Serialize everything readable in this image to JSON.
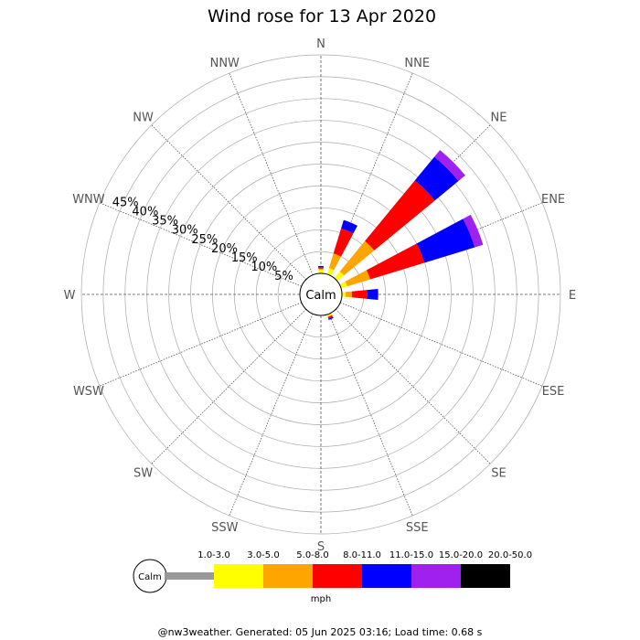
{
  "chart_data": {
    "type": "wind-rose",
    "title": "Wind rose for 13 Apr 2020",
    "directions": [
      "N",
      "NNE",
      "NE",
      "ENE",
      "E",
      "ESE",
      "SE",
      "SSE",
      "S",
      "SSW",
      "SW",
      "WSW",
      "W",
      "WNW",
      "NW",
      "NNW"
    ],
    "radial_ticks": [
      "5%",
      "10%",
      "15%",
      "20%",
      "25%",
      "30%",
      "35%",
      "40%",
      "45%"
    ],
    "radial_max": 50,
    "calm_label": "Calm",
    "speed_unit": "mph",
    "speed_bins": [
      {
        "label": "1.0-3.0",
        "color": "#999999"
      },
      {
        "label": "3.0-5.0",
        "color": "#ffff00"
      },
      {
        "label": "5.0-8.0",
        "color": "#ffa500"
      },
      {
        "label": "8.0-11.0",
        "color": "#ff0000"
      },
      {
        "label": "11.0-15.0",
        "color": "#0000ff"
      },
      {
        "label": "15.0-20.0",
        "color": "#a020f0"
      },
      {
        "label": "20.0-50.0",
        "color": "#000000"
      }
    ],
    "series": [
      {
        "direction": "N",
        "values": [
          0,
          0.8,
          0.3,
          0.3,
          0.3,
          0,
          0
        ]
      },
      {
        "direction": "NNE",
        "values": [
          0,
          1.5,
          3.5,
          6.0,
          2.0,
          0,
          0
        ]
      },
      {
        "direction": "NE",
        "values": [
          0,
          2.0,
          9.0,
          18.0,
          7.0,
          2.0,
          0
        ]
      },
      {
        "direction": "ENE",
        "values": [
          0,
          1.5,
          5.5,
          13.0,
          12.0,
          2.0,
          0
        ]
      },
      {
        "direction": "E",
        "values": [
          0,
          0.8,
          1.5,
          3.5,
          2.5,
          0,
          0
        ]
      },
      {
        "direction": "SSE",
        "values": [
          0,
          0.4,
          0.2,
          0.4,
          0.3,
          0,
          0
        ]
      }
    ]
  },
  "footer": "@nw3weather. Generated: 05 Jun 2025 03:16; Load time: 0.68 s"
}
